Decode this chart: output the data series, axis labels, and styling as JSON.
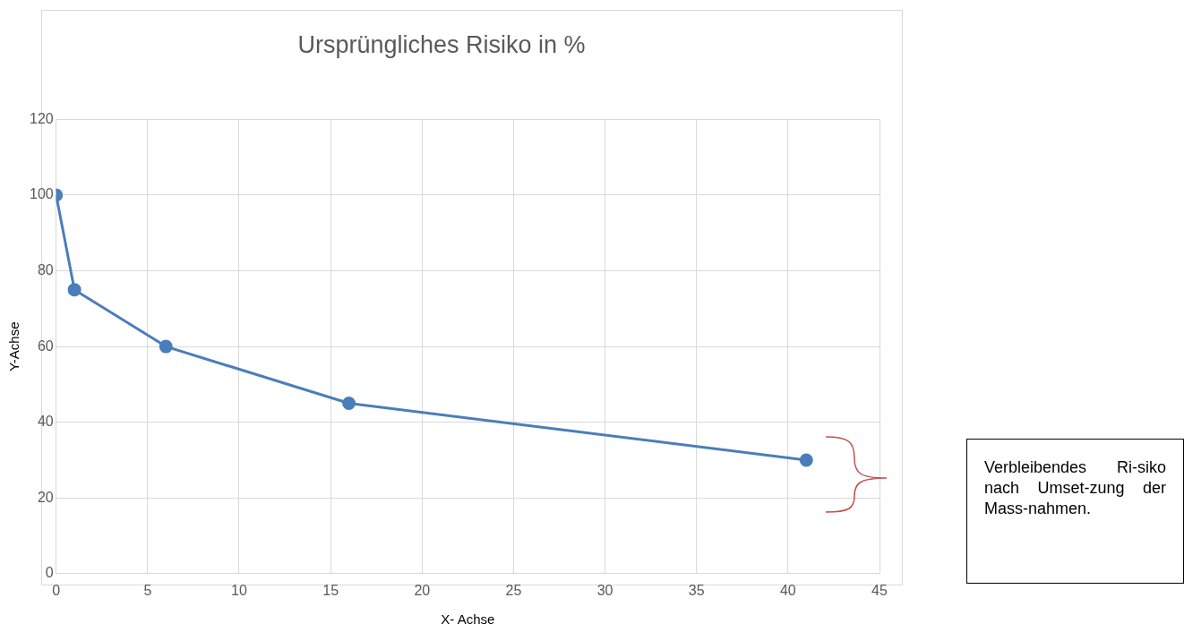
{
  "chart_data": {
    "type": "line",
    "title": "Ursprüngliches Risiko in %",
    "xlabel": "X- Achse",
    "ylabel": "Y-Achse",
    "x": [
      0,
      1,
      6,
      16,
      41
    ],
    "series": [
      {
        "color": "#4a7ebb",
        "values": [
          100,
          75,
          60,
          45,
          30
        ]
      }
    ],
    "xlim": [
      0,
      45
    ],
    "ylim": [
      0,
      120
    ],
    "xticks": [
      0,
      5,
      10,
      15,
      20,
      25,
      30,
      35,
      40,
      45
    ],
    "yticks": [
      0,
      20,
      40,
      60,
      80,
      100,
      120
    ],
    "grid": true,
    "marker": "circle",
    "annotations": [
      "Verbleibendes Ri-siko nach Umset-zung der Mass-nahmen."
    ]
  }
}
